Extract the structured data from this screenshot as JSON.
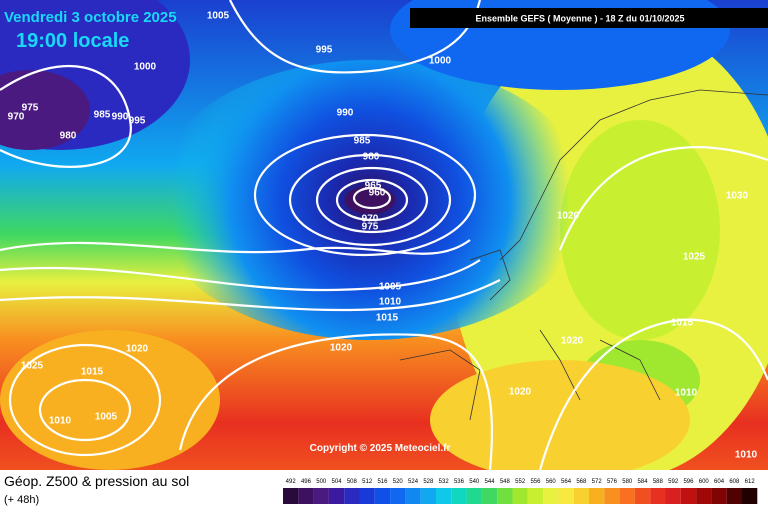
{
  "header": {
    "date": "Vendredi 3 octobre 2025",
    "time": "19:00 locale",
    "run": "Ensemble GEFS  ( Moyenne )  -  18 Z du 01/10/2025",
    "copyright": "Copyright © 2025 Meteociel.fr"
  },
  "footer": {
    "title": "Géop. Z500 & pression au sol",
    "lead": "(+ 48h)"
  },
  "isobar_labels": [
    1005,
    995,
    1000,
    1000,
    975,
    970,
    980,
    985,
    990,
    995,
    990,
    985,
    980,
    965,
    960,
    970,
    975,
    1020,
    1030,
    1025,
    1005,
    1010,
    1015,
    1020,
    1020,
    1020,
    1015,
    1025,
    1015,
    1005,
    1010,
    1020,
    1010,
    1010
  ],
  "legend": {
    "values": [
      492,
      496,
      500,
      504,
      508,
      512,
      516,
      520,
      524,
      528,
      532,
      536,
      540,
      544,
      548,
      552,
      556,
      560,
      564,
      568,
      572,
      576,
      580,
      584,
      588,
      592,
      596,
      600,
      604,
      608,
      612
    ],
    "colors": [
      "#2a0a3a",
      "#3e1060",
      "#4a1a80",
      "#3a1aa0",
      "#2a2ac0",
      "#1a3ad8",
      "#1050e8",
      "#1068f0",
      "#1088f0",
      "#10a8f0",
      "#10c8e8",
      "#10d8c0",
      "#20d890",
      "#40d860",
      "#70e040",
      "#a0e830",
      "#c8f030",
      "#e8f040",
      "#f8e840",
      "#f8d030",
      "#f8b020",
      "#f89020",
      "#f87020",
      "#f05020",
      "#e83020",
      "#d82020",
      "#c01010",
      "#a00808",
      "#800404",
      "#500202",
      "#200000"
    ]
  }
}
